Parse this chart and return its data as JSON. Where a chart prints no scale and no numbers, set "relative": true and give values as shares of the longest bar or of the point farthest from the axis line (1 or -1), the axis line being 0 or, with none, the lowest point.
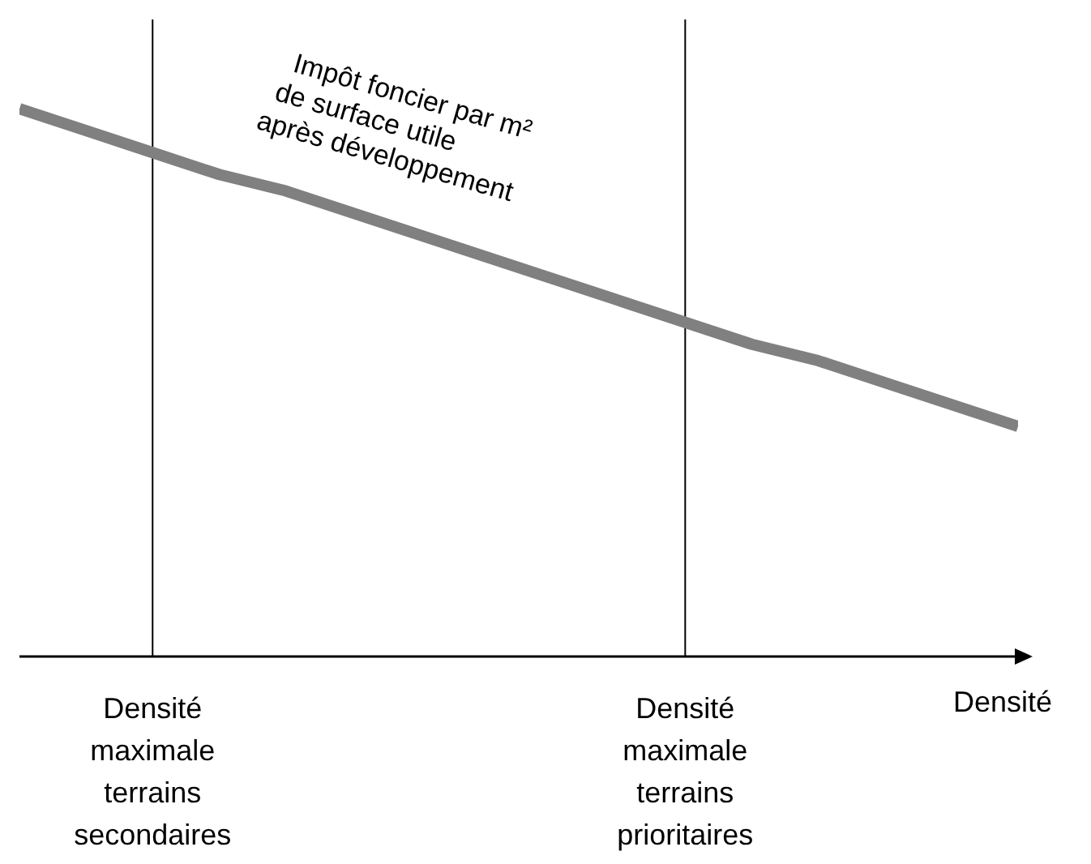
{
  "chart_data": {
    "type": "line",
    "relative": true,
    "xlabel": "Densité",
    "categories": [
      null,
      null,
      "Densité maximale terrains secondaires",
      null,
      null,
      null,
      null,
      null,
      null,
      null,
      "Densité maximale terrains prioritaires",
      null,
      null,
      null,
      null,
      null
    ],
    "series": [
      {
        "color": "#808080",
        "values": [
          1,
          0.96,
          0.92,
          0.88,
          0.85,
          0.81,
          0.77,
          0.73,
          0.69,
          0.65,
          0.61,
          0.57,
          0.54,
          0.5,
          0.46,
          0.42
        ]
      }
    ],
    "ref_lines": [
      {
        "axis": "x",
        "value": "Densité maximale terrains secondaires",
        "color": "#000000"
      },
      {
        "axis": "x",
        "value": "Densité maximale terrains prioritaires",
        "color": "#000000"
      }
    ],
    "annotations": [
      "Impôt foncier par m²\nde surface utile\naprès développement"
    ],
    "grid": false,
    "marker": "none",
    "line_style": "solid",
    "tick_labels": "x"
  }
}
